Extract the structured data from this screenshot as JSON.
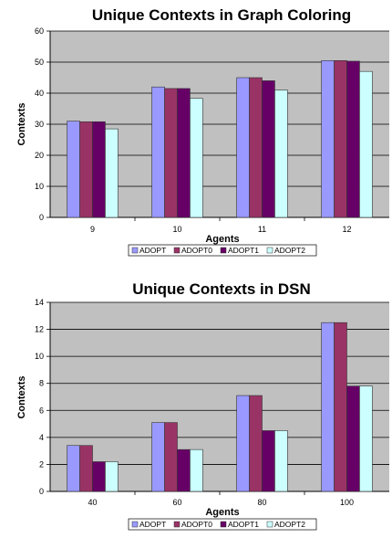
{
  "colors": {
    "plot_bg": "#c0c0c0",
    "grid": "#000000",
    "series": [
      "#9999ff",
      "#993366",
      "#660066",
      "#ccffff"
    ],
    "bar_stroke": "#333333"
  },
  "chart_data": [
    {
      "type": "bar",
      "title": "Unique Contexts in Graph Coloring",
      "xlabel": "Agents",
      "ylabel": "Contexts",
      "categories": [
        "9",
        "10",
        "11",
        "12"
      ],
      "ylim": [
        0,
        60
      ],
      "yticks": [
        0,
        10,
        20,
        30,
        40,
        50,
        60
      ],
      "grid": true,
      "legend_position": "bottom",
      "series": [
        {
          "name": "ADOPT",
          "values": [
            31,
            42,
            45,
            50.5
          ]
        },
        {
          "name": "ADOPT0",
          "values": [
            30.8,
            41.5,
            45,
            50.5
          ]
        },
        {
          "name": "ADOPT1",
          "values": [
            30.8,
            41.5,
            44,
            50.3
          ]
        },
        {
          "name": "ADOPT2",
          "values": [
            28.5,
            38.3,
            41,
            47
          ]
        }
      ]
    },
    {
      "type": "bar",
      "title": "Unique Contexts in DSN",
      "xlabel": "Agents",
      "ylabel": "Contexts",
      "categories": [
        "40",
        "60",
        "80",
        "100"
      ],
      "ylim": [
        0,
        14
      ],
      "yticks": [
        0,
        2,
        4,
        6,
        8,
        10,
        12,
        14
      ],
      "grid": true,
      "legend_position": "bottom",
      "series": [
        {
          "name": "ADOPT",
          "values": [
            3.4,
            5.1,
            7.1,
            12.5
          ]
        },
        {
          "name": "ADOPT0",
          "values": [
            3.4,
            5.1,
            7.1,
            12.5
          ]
        },
        {
          "name": "ADOPT1",
          "values": [
            2.2,
            3.1,
            4.5,
            7.8
          ]
        },
        {
          "name": "ADOPT2",
          "values": [
            2.2,
            3.1,
            4.5,
            7.8
          ]
        }
      ]
    }
  ]
}
